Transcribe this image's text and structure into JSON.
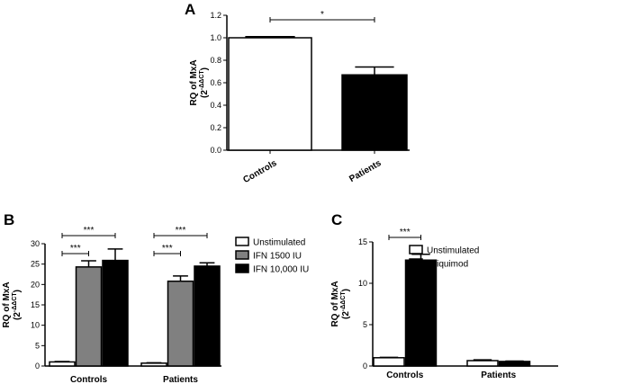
{
  "chart_data": [
    {
      "panel": "A",
      "type": "bar",
      "ylabel": "RQ of MxA",
      "ylabel_formula": "(2",
      "ylabel_superscript": "-ΔΔCT",
      "ylabel_close": ")",
      "ylim": [
        0,
        1.2
      ],
      "yticks": [
        "0.0",
        "0.2",
        "0.4",
        "0.6",
        "0.8",
        "1.0",
        "1.2"
      ],
      "categories": [
        "Controls",
        "Patients"
      ],
      "values": [
        1.0,
        0.67
      ],
      "errors": [
        0.01,
        0.07
      ],
      "colors": [
        "#ffffff",
        "#000000"
      ],
      "significance": [
        {
          "between": [
            0,
            1
          ],
          "label": "*"
        }
      ]
    },
    {
      "panel": "B",
      "type": "bar",
      "ylabel": "RQ of MxA",
      "ylabel_formula": "(2",
      "ylabel_superscript": "-ΔΔCT",
      "ylabel_close": ")",
      "ylim": [
        0,
        30
      ],
      "yticks": [
        "0",
        "5",
        "10",
        "15",
        "20",
        "25",
        "30"
      ],
      "categories": [
        "Controls",
        "Patients"
      ],
      "series": [
        {
          "name": "Unstimulated",
          "values": [
            1.0,
            0.7
          ],
          "errors": [
            0.1,
            0.1
          ],
          "color": "#ffffff"
        },
        {
          "name": "IFN 1500 IU",
          "values": [
            24.3,
            20.8
          ],
          "errors": [
            1.5,
            1.3
          ],
          "color": "#808080"
        },
        {
          "name": "IFN 10,000 IU",
          "values": [
            25.9,
            24.5
          ],
          "errors": [
            2.8,
            0.8
          ],
          "color": "#000000"
        }
      ],
      "significance": [
        {
          "group": 0,
          "between": [
            0,
            1
          ],
          "label": "***"
        },
        {
          "group": 0,
          "between": [
            0,
            2
          ],
          "label": "***"
        },
        {
          "group": 1,
          "between": [
            0,
            1
          ],
          "label": "***"
        },
        {
          "group": 1,
          "between": [
            0,
            2
          ],
          "label": "***"
        }
      ]
    },
    {
      "panel": "C",
      "type": "bar",
      "ylabel": "RQ of MxA",
      "ylabel_formula": "(2",
      "ylabel_superscript": "-ΔΔCT",
      "ylabel_close": ")",
      "ylim": [
        0,
        15
      ],
      "yticks": [
        "0",
        "5",
        "10",
        "15"
      ],
      "categories": [
        "Controls",
        "Patients"
      ],
      "series": [
        {
          "name": "Unstimulated",
          "values": [
            1.0,
            0.65
          ],
          "errors": [
            0.05,
            0.1
          ],
          "color": "#ffffff"
        },
        {
          "name": "Imiquimod",
          "values": [
            12.8,
            0.55
          ],
          "errors": [
            0.7,
            0.05
          ],
          "color": "#000000"
        }
      ],
      "significance": [
        {
          "group": 0,
          "between": [
            0,
            1
          ],
          "label": "***"
        }
      ]
    }
  ]
}
